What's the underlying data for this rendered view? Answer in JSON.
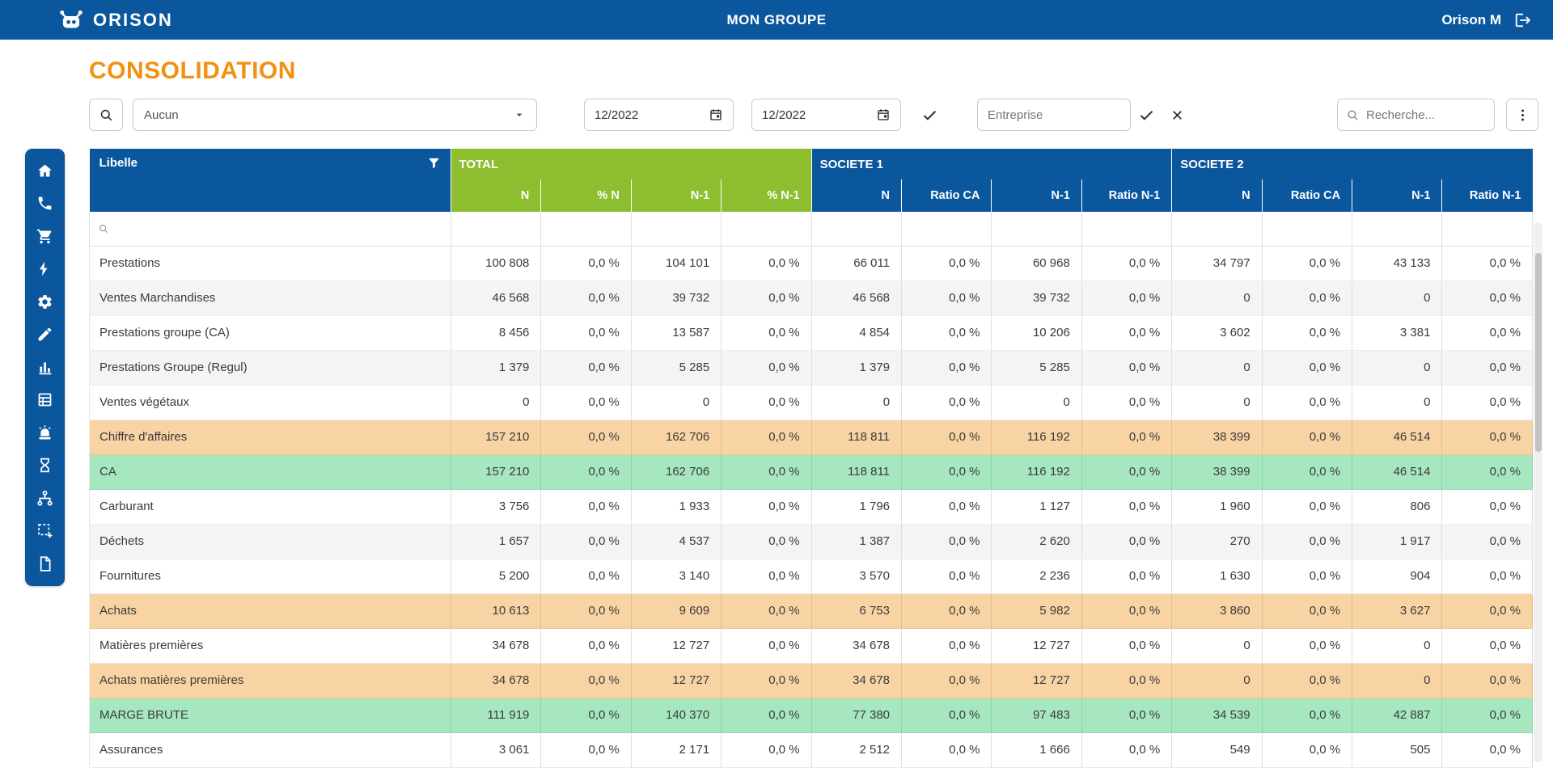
{
  "colors": {
    "brand_blue": "#0b579e",
    "header_green": "#8cbe2f",
    "accent_orange": "#f29111",
    "row_highlight_orange": "#f8d3a3",
    "row_highlight_green": "#a6e7c0"
  },
  "topbar": {
    "brand": "ORISON",
    "group_title": "MON GROUPE",
    "user_name": "Orison M"
  },
  "page": {
    "title": "CONSOLIDATION"
  },
  "toolbar": {
    "scope_select_value": "Aucun",
    "period_from": "12/2022",
    "period_to": "12/2022",
    "entreprise_placeholder": "Entreprise",
    "search_placeholder": "Recherche..."
  },
  "sidebar": {
    "items": [
      "home-icon",
      "phone-icon",
      "cart-icon",
      "bolt-icon",
      "gear-icon",
      "pencil-icon",
      "bar-chart-icon",
      "planning-icon",
      "alarm-icon",
      "hourglass-icon",
      "hierarchy-icon",
      "selection-icon",
      "document-icon"
    ]
  },
  "table": {
    "libelle_header": "Libelle",
    "groups": [
      {
        "label": "TOTAL",
        "columns": [
          "N",
          "% N",
          "N-1",
          "% N-1"
        ]
      },
      {
        "label": "SOCIETE 1",
        "columns": [
          "N",
          "Ratio CA",
          "N-1",
          "Ratio N-1"
        ]
      },
      {
        "label": "SOCIETE 2",
        "columns": [
          "N",
          "Ratio CA",
          "N-1",
          "Ratio N-1"
        ]
      }
    ],
    "rows": [
      {
        "label": "Prestations",
        "shade": "plain",
        "values": [
          "100 808",
          "0,0 %",
          "104 101",
          "0,0 %",
          "66 011",
          "0,0 %",
          "60 968",
          "0,0 %",
          "34 797",
          "0,0 %",
          "43 133",
          "0,0 %"
        ]
      },
      {
        "label": "Ventes Marchandises",
        "shade": "alt",
        "values": [
          "46 568",
          "0,0 %",
          "39 732",
          "0,0 %",
          "46 568",
          "0,0 %",
          "39 732",
          "0,0 %",
          "0",
          "0,0 %",
          "0",
          "0,0 %"
        ]
      },
      {
        "label": "Prestations groupe (CA)",
        "shade": "plain",
        "values": [
          "8 456",
          "0,0 %",
          "13 587",
          "0,0 %",
          "4 854",
          "0,0 %",
          "10 206",
          "0,0 %",
          "3 602",
          "0,0 %",
          "3 381",
          "0,0 %"
        ]
      },
      {
        "label": "Prestations Groupe (Regul)",
        "shade": "alt",
        "values": [
          "1 379",
          "0,0 %",
          "5 285",
          "0,0 %",
          "1 379",
          "0,0 %",
          "5 285",
          "0,0 %",
          "0",
          "0,0 %",
          "0",
          "0,0 %"
        ]
      },
      {
        "label": "Ventes végétaux",
        "shade": "plain",
        "values": [
          "0",
          "0,0 %",
          "0",
          "0,0 %",
          "0",
          "0,0 %",
          "0",
          "0,0 %",
          "0",
          "0,0 %",
          "0",
          "0,0 %"
        ]
      },
      {
        "label": "Chiffre d'affaires",
        "shade": "hl-orange",
        "values": [
          "157 210",
          "0,0 %",
          "162 706",
          "0,0 %",
          "118 811",
          "0,0 %",
          "116 192",
          "0,0 %",
          "38 399",
          "0,0 %",
          "46 514",
          "0,0 %"
        ]
      },
      {
        "label": "CA",
        "shade": "hl-green",
        "values": [
          "157 210",
          "0,0 %",
          "162 706",
          "0,0 %",
          "118 811",
          "0,0 %",
          "116 192",
          "0,0 %",
          "38 399",
          "0,0 %",
          "46 514",
          "0,0 %"
        ]
      },
      {
        "label": "Carburant",
        "shade": "plain",
        "values": [
          "3 756",
          "0,0 %",
          "1 933",
          "0,0 %",
          "1 796",
          "0,0 %",
          "1 127",
          "0,0 %",
          "1 960",
          "0,0 %",
          "806",
          "0,0 %"
        ]
      },
      {
        "label": "Déchets",
        "shade": "alt",
        "values": [
          "1 657",
          "0,0 %",
          "4 537",
          "0,0 %",
          "1 387",
          "0,0 %",
          "2 620",
          "0,0 %",
          "270",
          "0,0 %",
          "1 917",
          "0,0 %"
        ]
      },
      {
        "label": "Fournitures",
        "shade": "plain",
        "values": [
          "5 200",
          "0,0 %",
          "3 140",
          "0,0 %",
          "3 570",
          "0,0 %",
          "2 236",
          "0,0 %",
          "1 630",
          "0,0 %",
          "904",
          "0,0 %"
        ]
      },
      {
        "label": "Achats",
        "shade": "hl-orange",
        "values": [
          "10 613",
          "0,0 %",
          "9 609",
          "0,0 %",
          "6 753",
          "0,0 %",
          "5 982",
          "0,0 %",
          "3 860",
          "0,0 %",
          "3 627",
          "0,0 %"
        ]
      },
      {
        "label": "Matières premières",
        "shade": "plain",
        "values": [
          "34 678",
          "0,0 %",
          "12 727",
          "0,0 %",
          "34 678",
          "0,0 %",
          "12 727",
          "0,0 %",
          "0",
          "0,0 %",
          "0",
          "0,0 %"
        ]
      },
      {
        "label": "Achats matières premières",
        "shade": "hl-orange",
        "values": [
          "34 678",
          "0,0 %",
          "12 727",
          "0,0 %",
          "34 678",
          "0,0 %",
          "12 727",
          "0,0 %",
          "0",
          "0,0 %",
          "0",
          "0,0 %"
        ]
      },
      {
        "label": "MARGE BRUTE",
        "shade": "hl-green",
        "values": [
          "111 919",
          "0,0 %",
          "140 370",
          "0,0 %",
          "77 380",
          "0,0 %",
          "97 483",
          "0,0 %",
          "34 539",
          "0,0 %",
          "42 887",
          "0,0 %"
        ]
      },
      {
        "label": "Assurances",
        "shade": "plain",
        "values": [
          "3 061",
          "0,0 %",
          "2 171",
          "0,0 %",
          "2 512",
          "0,0 %",
          "1 666",
          "0,0 %",
          "549",
          "0,0 %",
          "505",
          "0,0 %"
        ]
      }
    ]
  }
}
